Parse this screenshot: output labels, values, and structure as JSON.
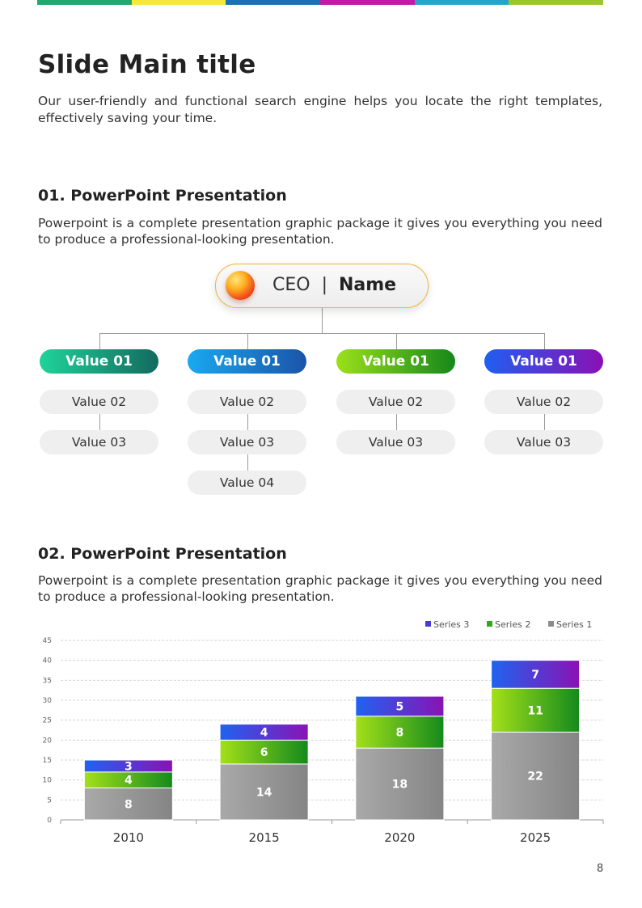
{
  "top_bar_colors": [
    "#22a86e",
    "#f5e93a",
    "#1f6fb5",
    "#c11aa5",
    "#25a6c9",
    "#9cc62b"
  ],
  "title": "Slide Main title",
  "subtitle": "Our user-friendly and functional search engine helps you locate the right templates, effectively saving your time.",
  "section1": {
    "heading": "01. PowerPoint Presentation",
    "description": "Powerpoint is a complete presentation graphic package it gives you everything you need to produce a professional-looking presentation."
  },
  "org": {
    "ceo_role": "CEO",
    "separator": "|",
    "ceo_name": "Name",
    "columns": [
      {
        "head": "Value 01",
        "gradient": [
          "#1fd39a",
          "#136a5f"
        ],
        "items": [
          "Value 02",
          "Value 03"
        ]
      },
      {
        "head": "Value 01",
        "gradient": [
          "#19a9f0",
          "#1b54a8"
        ],
        "items": [
          "Value 02",
          "Value 03",
          "Value 04"
        ]
      },
      {
        "head": "Value 01",
        "gradient": [
          "#9be11a",
          "#15871b"
        ],
        "items": [
          "Value 02",
          "Value 03"
        ]
      },
      {
        "head": "Value 01",
        "gradient": [
          "#1f5ff0",
          "#8a10b5"
        ],
        "items": [
          "Value 02",
          "Value 03"
        ]
      }
    ]
  },
  "section2": {
    "heading": "02. PowerPoint Presentation",
    "description": "Powerpoint is a complete presentation graphic package it gives you everything you need to produce a professional-looking presentation."
  },
  "chart_data": {
    "type": "bar",
    "stacked": true,
    "categories": [
      "2010",
      "2015",
      "2020",
      "2025"
    ],
    "series": [
      {
        "name": "Series 1",
        "values": [
          8,
          14,
          18,
          22
        ],
        "colors": [
          "#a9a9a9",
          "#858585"
        ]
      },
      {
        "name": "Series 2",
        "values": [
          4,
          6,
          8,
          11
        ],
        "colors": [
          "#a4e01a",
          "#148a1c"
        ]
      },
      {
        "name": "Series 3",
        "values": [
          3,
          4,
          5,
          7
        ],
        "colors": [
          "#1f63f0",
          "#8a12b4"
        ]
      }
    ],
    "legend_order": [
      "Series 3",
      "Series 2",
      "Series 1"
    ],
    "legend_colors": [
      "#4b3bd6",
      "#33a81a",
      "#8c8c8c"
    ],
    "ylim": [
      0,
      45
    ],
    "yticks": [
      0,
      5,
      10,
      15,
      20,
      25,
      30,
      35,
      40,
      45
    ],
    "grid": true,
    "legend_position": "top-right"
  },
  "page_number": "8"
}
